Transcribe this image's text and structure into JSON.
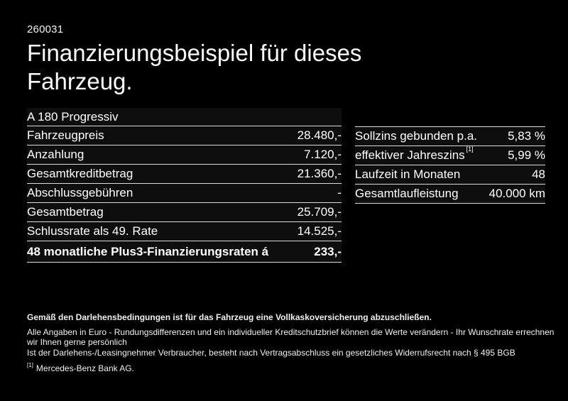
{
  "page": {
    "ref_number": "260031",
    "title": "Finanzierungsbeispiel für dieses Fahrzeug."
  },
  "left_table": {
    "header": "A 180 Progressiv",
    "rows": [
      {
        "label": "Fahrzeugpreis",
        "value": "28.480,-"
      },
      {
        "label": "Anzahlung",
        "value": "7.120,-"
      },
      {
        "label": "Gesamtkreditbetrag",
        "value": "21.360,-"
      },
      {
        "label": "Abschlussgebühren",
        "value": "-"
      },
      {
        "label": "Gesamtbetrag",
        "value": "25.709,-"
      },
      {
        "label": "Schlussrate als 49. Rate",
        "value": "14.525,-"
      },
      {
        "label": "48 monatliche Plus3-Finanzierungsraten á",
        "value": "233,-"
      }
    ]
  },
  "right_table": {
    "rows": [
      {
        "label": "Sollzins gebunden p.a.",
        "value": "5,83 %"
      },
      {
        "label": "effektiver Jahreszins",
        "label_sup": "[1]",
        "value": "5,99 %"
      },
      {
        "label": "Laufzeit in Monaten",
        "value": "48"
      },
      {
        "label": "Gesamtlaufleistung",
        "value": "40.000 km"
      }
    ]
  },
  "footer": {
    "bold_note": "Gemäß den Darlehensbedingungen ist für das Fahrzeug eine Vollkaskoversicherung abzuschließen.",
    "lines": [
      "Alle Angaben in Euro - Rundungsdifferenzen und ein individueller Kreditschutzbrief können die Werte verändern - Ihr Wunschrate errechnen wir Ihnen gerne persönlich",
      "Ist der Darlehens-/Leasingnehmer Verbraucher, besteht nach Vertragsabschluss ein gesetzliches Widerrufsrecht nach § 495 BGB"
    ],
    "footnote_marker": "[1]",
    "footnote_text": "Mercedes-Benz Bank AG."
  },
  "colors": {
    "background": "#000000",
    "text": "#ffffff",
    "divider": "#dcdcdc",
    "row_tint": "#0e0e0e"
  }
}
